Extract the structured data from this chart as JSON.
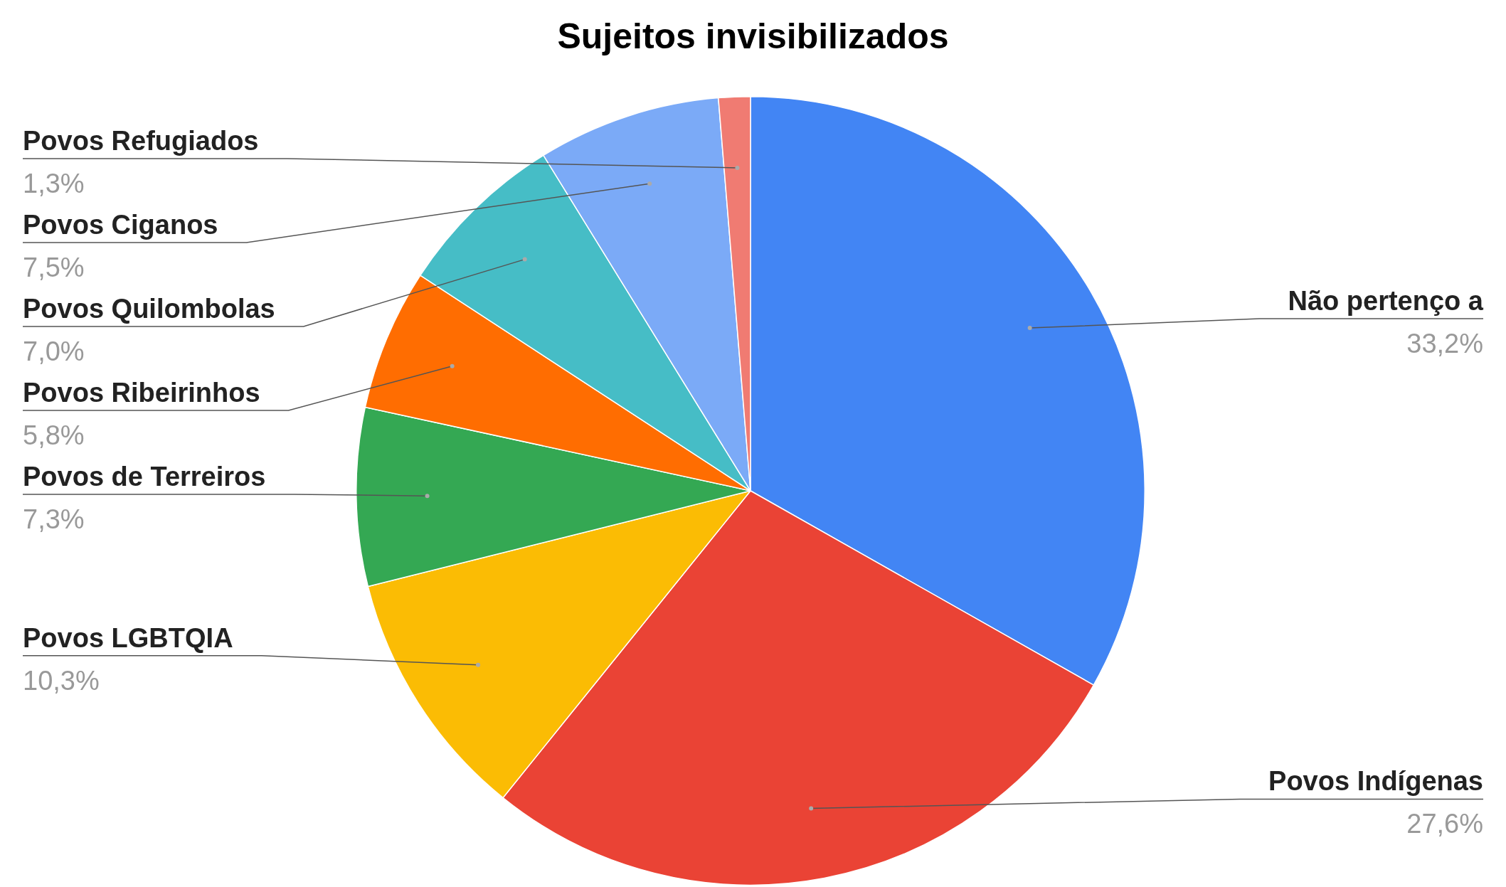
{
  "chart_data": {
    "type": "pie",
    "title": "Sujeitos invisibilizados",
    "categories": [
      "Não pertenço a",
      "Povos Indígenas",
      "Povos LGBTQIA",
      "Povos de Terreiros",
      "Povos Ribeirinhos",
      "Povos Quilombolas",
      "Povos Ciganos",
      "Povos Refugiados"
    ],
    "values": [
      33.2,
      27.6,
      10.3,
      7.3,
      5.8,
      7.0,
      7.5,
      1.3
    ],
    "colors": [
      "#4285f4",
      "#ea4335",
      "#fbbc04",
      "#34a853",
      "#ff6d01",
      "#46bdc6",
      "#7baaf7",
      "#f07b72"
    ],
    "value_labels": [
      "33,2%",
      "27,6%",
      "10,3%",
      "7,3%",
      "5,8%",
      "7,0%",
      "7,5%",
      "1,3%"
    ],
    "legend": false
  }
}
